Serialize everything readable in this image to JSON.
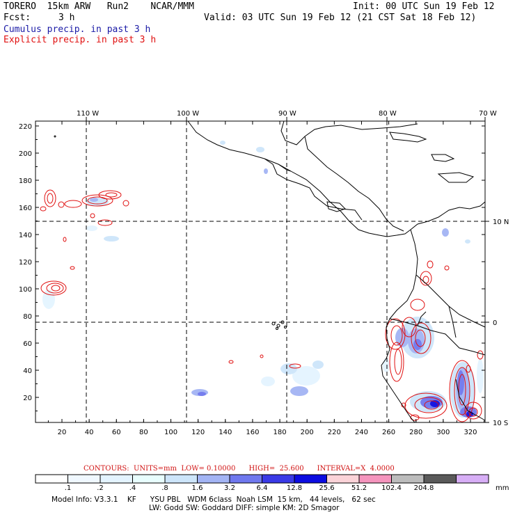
{
  "header": {
    "title": "TORERO  15km ARW   Run2    NCAR/MMM",
    "init": "Init: 00 UTC Sun 19 Feb 12",
    "fcst_label": "Fcst:",
    "fcst_value": "3 h",
    "valid": "Valid: 03 UTC Sun 19 Feb 12 (21 CST Sat 18 Feb 12)",
    "cumulus_label": "Cumulus precip. in past 3 h",
    "explicit_label": "Explicit precip. in past 3 h"
  },
  "axes": {
    "top_lon_labels": [
      "110 W",
      "100 W",
      "90 W",
      "80 W",
      "70 W"
    ],
    "right_lat_labels": [
      "10 N",
      "0",
      "10 S"
    ],
    "left_y_ticks": [
      "20",
      "40",
      "60",
      "80",
      "100",
      "120",
      "140",
      "160",
      "180",
      "200",
      "220"
    ],
    "bottom_x_ticks": [
      "20",
      "40",
      "60",
      "80",
      "100",
      "120",
      "140",
      "160",
      "180",
      "200",
      "220",
      "240",
      "260",
      "280",
      "300",
      "320"
    ]
  },
  "contour_info": {
    "text": "CONTOURS:  UNITS=mm  LOW= 0.10000      HIGH=  25.600      INTERVAL=X  4.0000"
  },
  "colorbar": {
    "labels": [
      ".1",
      ".2",
      ".4",
      ".8",
      "1.6",
      "3.2",
      "6.4",
      "12.8",
      "25.6",
      "51.2",
      "102.4",
      "204.8"
    ],
    "unit": "mm",
    "colors": [
      "#ffffff",
      "#f0f8ff",
      "#e4f4ff",
      "#e8fefe",
      "#cde5fa",
      "#a3b4f4",
      "#6f78ee",
      "#3a3ae6",
      "#0c0ce0",
      "#fbd3d8",
      "#f594bd",
      "#bcbcbc",
      "#5a5a5a",
      "#d7aef6"
    ]
  },
  "footer": {
    "line1": "Model Info: V3.3.1    KF      YSU PBL   WDM 6class  Noah LSM  15 km,   44 levels,   62 sec",
    "line2": "LW: Godd SW: Goddard DIFF: simple KM: 2D Smagor"
  }
}
